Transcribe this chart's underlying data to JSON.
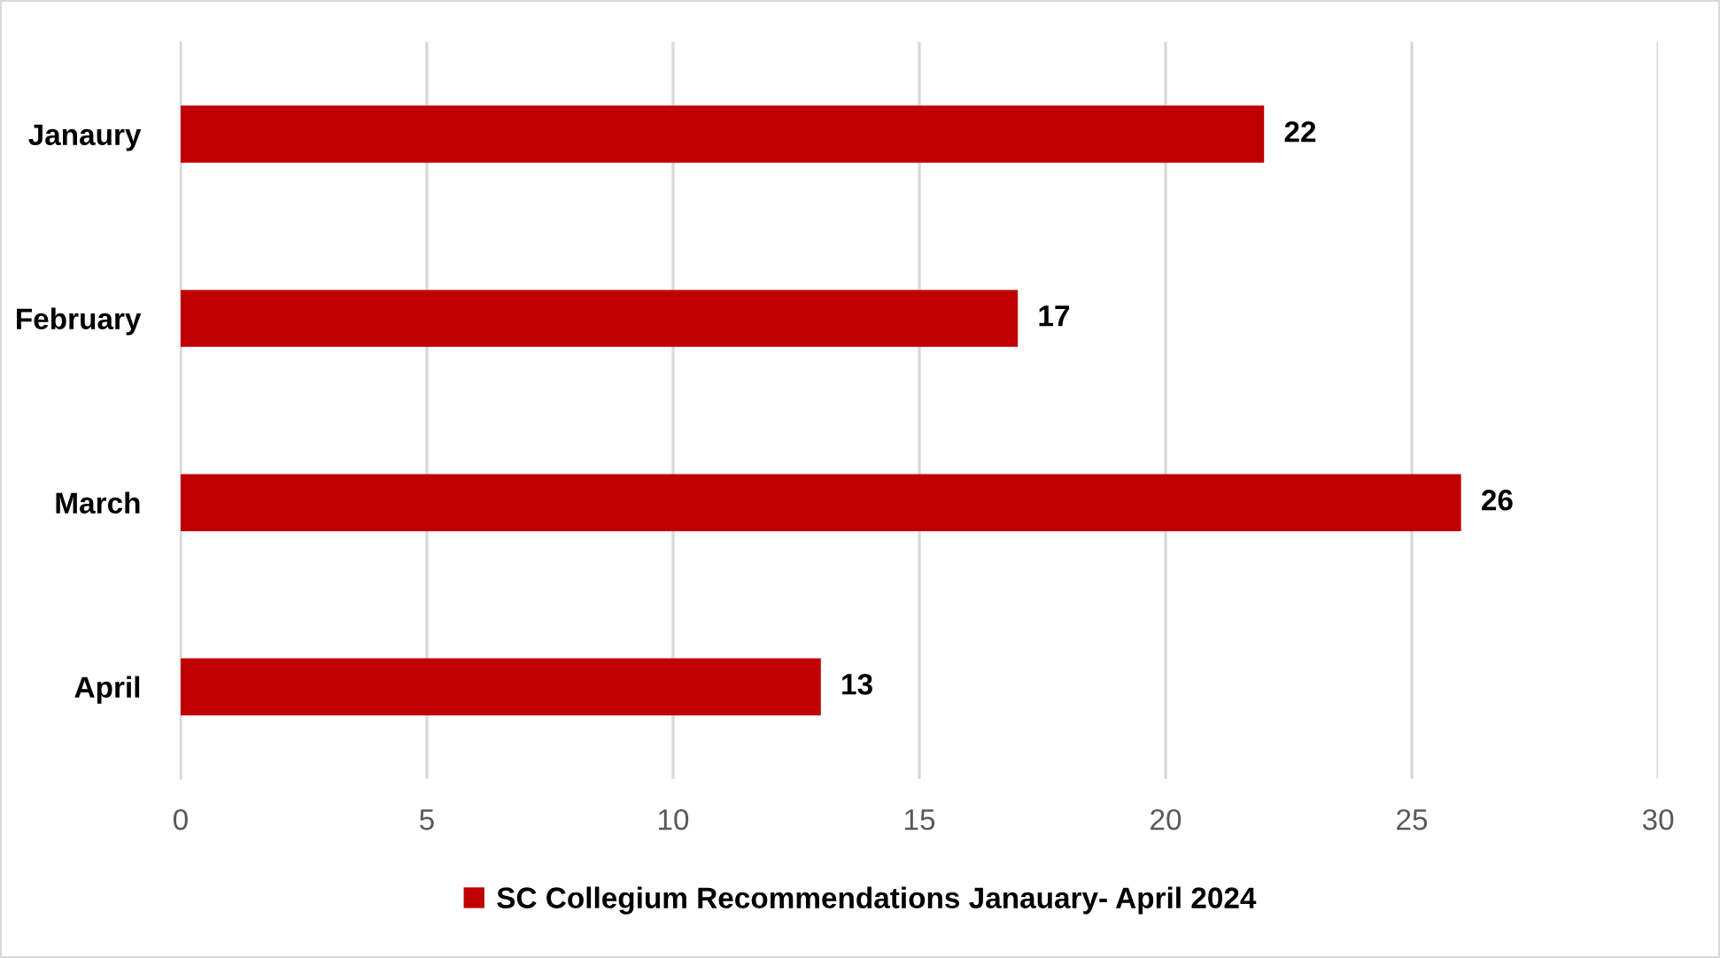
{
  "chart_data": {
    "type": "bar",
    "orientation": "horizontal",
    "categories": [
      "Janaury",
      "February",
      "March",
      "April"
    ],
    "series": [
      {
        "name": "SC Collegium Recommendations Janauary- April 2024",
        "color": "#c00000",
        "values": [
          22,
          17,
          26,
          13
        ]
      }
    ],
    "xlim": [
      0,
      30
    ],
    "xticks": [
      0,
      5,
      10,
      15,
      20,
      25,
      30
    ],
    "grid": "x",
    "legend": "bottom",
    "data_labels": true
  }
}
